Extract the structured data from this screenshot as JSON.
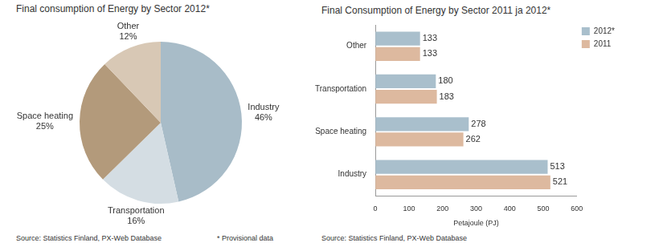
{
  "chart_data": [
    {
      "type": "pie",
      "title": "Final consumption of Energy by Sector 2012*",
      "categories": [
        "Industry",
        "Transportation",
        "Space heating",
        "Other"
      ],
      "values": [
        46,
        16,
        25,
        12
      ],
      "value_labels": [
        "46%",
        "16%",
        "25%",
        "12%"
      ],
      "colors": [
        "#a8bcc8",
        "#d4dde3",
        "#b39a7b",
        "#d8c8b5"
      ],
      "data_labels": true,
      "annotations": [
        "Source: Statistics Finland, PX-Web Database",
        "* Provisional data"
      ]
    },
    {
      "type": "bar",
      "title": "Final Consumption of Energy by Sector 2011 ja 2012*",
      "orientation": "horizontal",
      "categories": [
        "Other",
        "Transportation",
        "Space heating",
        "Industry"
      ],
      "series": [
        {
          "name": "2012*",
          "color": "#a9bfcc",
          "values": [
            133,
            180,
            278,
            513
          ]
        },
        {
          "name": "2011",
          "color": "#ddb99f",
          "values": [
            133,
            183,
            262,
            521
          ]
        }
      ],
      "x_label": "Petajoule (PJ)",
      "xlim": [
        0,
        600
      ],
      "xticks": [
        0,
        100,
        200,
        300,
        400,
        500,
        600
      ],
      "grid": false,
      "legend": "right",
      "data_labels": true,
      "annotations": [
        "* Provisional data",
        "Source: Statistics Finland, PX-Web Database"
      ]
    }
  ]
}
